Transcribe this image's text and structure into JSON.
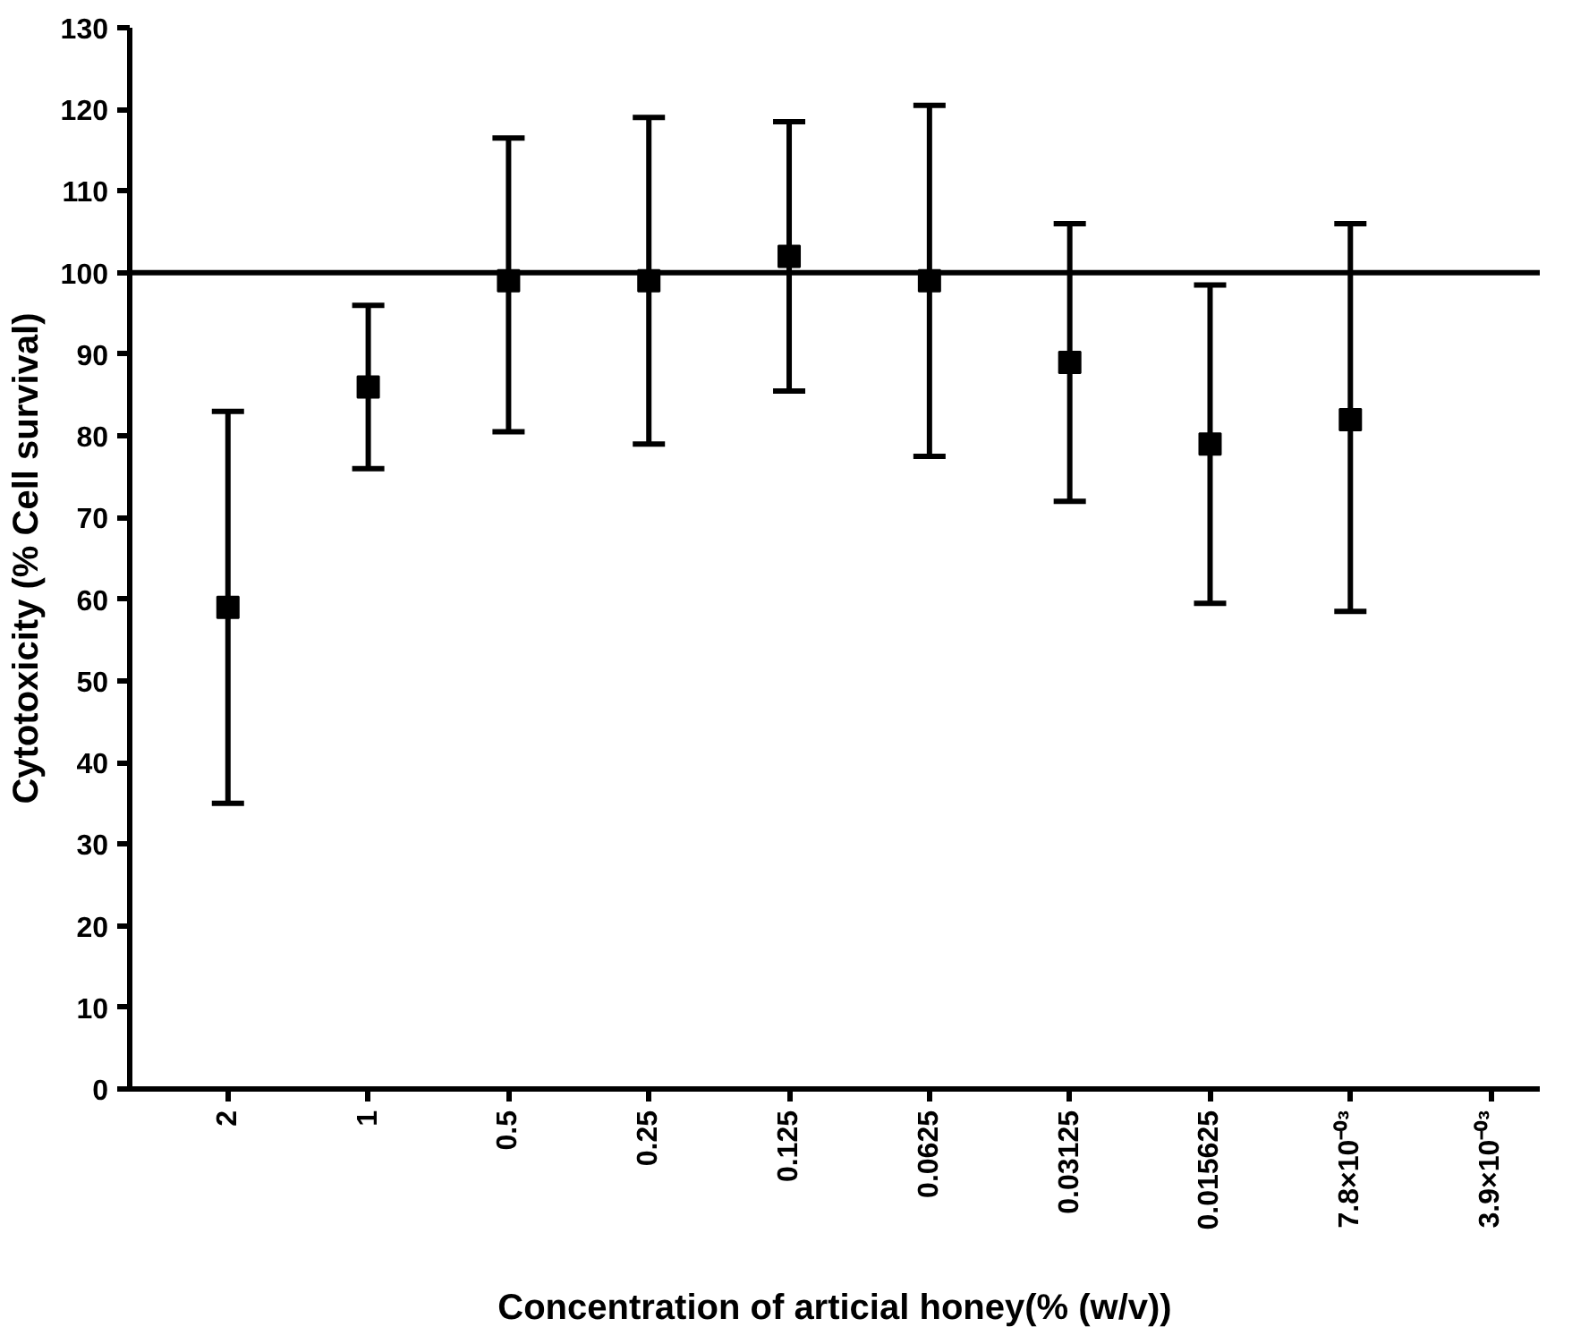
{
  "chart_data": {
    "type": "scatter",
    "xlabel": "Concentration of articial honey(% (w/v))",
    "ylabel": "Cytotoxicity (% Cell survival)",
    "categories": [
      "2",
      "1",
      "0.5",
      "0.25",
      "0.125",
      "0.0625",
      "0.03125",
      "0.015625",
      "7.8×10⁻⁰³",
      "3.9×10⁻⁰³"
    ],
    "values": [
      59,
      86,
      99,
      99,
      102,
      99,
      89,
      79,
      82,
      null
    ],
    "errors": [
      [
        35,
        83
      ],
      [
        76,
        96
      ],
      [
        80.5,
        116.5
      ],
      [
        79,
        119
      ],
      [
        85.5,
        118.5
      ],
      [
        77.5,
        120.5
      ],
      [
        72,
        106
      ],
      [
        59.5,
        98.5
      ],
      [
        58.5,
        106
      ],
      null
    ],
    "color": "#000000",
    "marker": "square",
    "grid": false,
    "ylim": [
      0,
      130
    ],
    "yticks": [
      0,
      10,
      20,
      30,
      40,
      50,
      60,
      70,
      80,
      90,
      100,
      110,
      120,
      130
    ],
    "ref_lines": [
      {
        "axis": "y",
        "value": 100,
        "color": "#000000"
      }
    ]
  }
}
